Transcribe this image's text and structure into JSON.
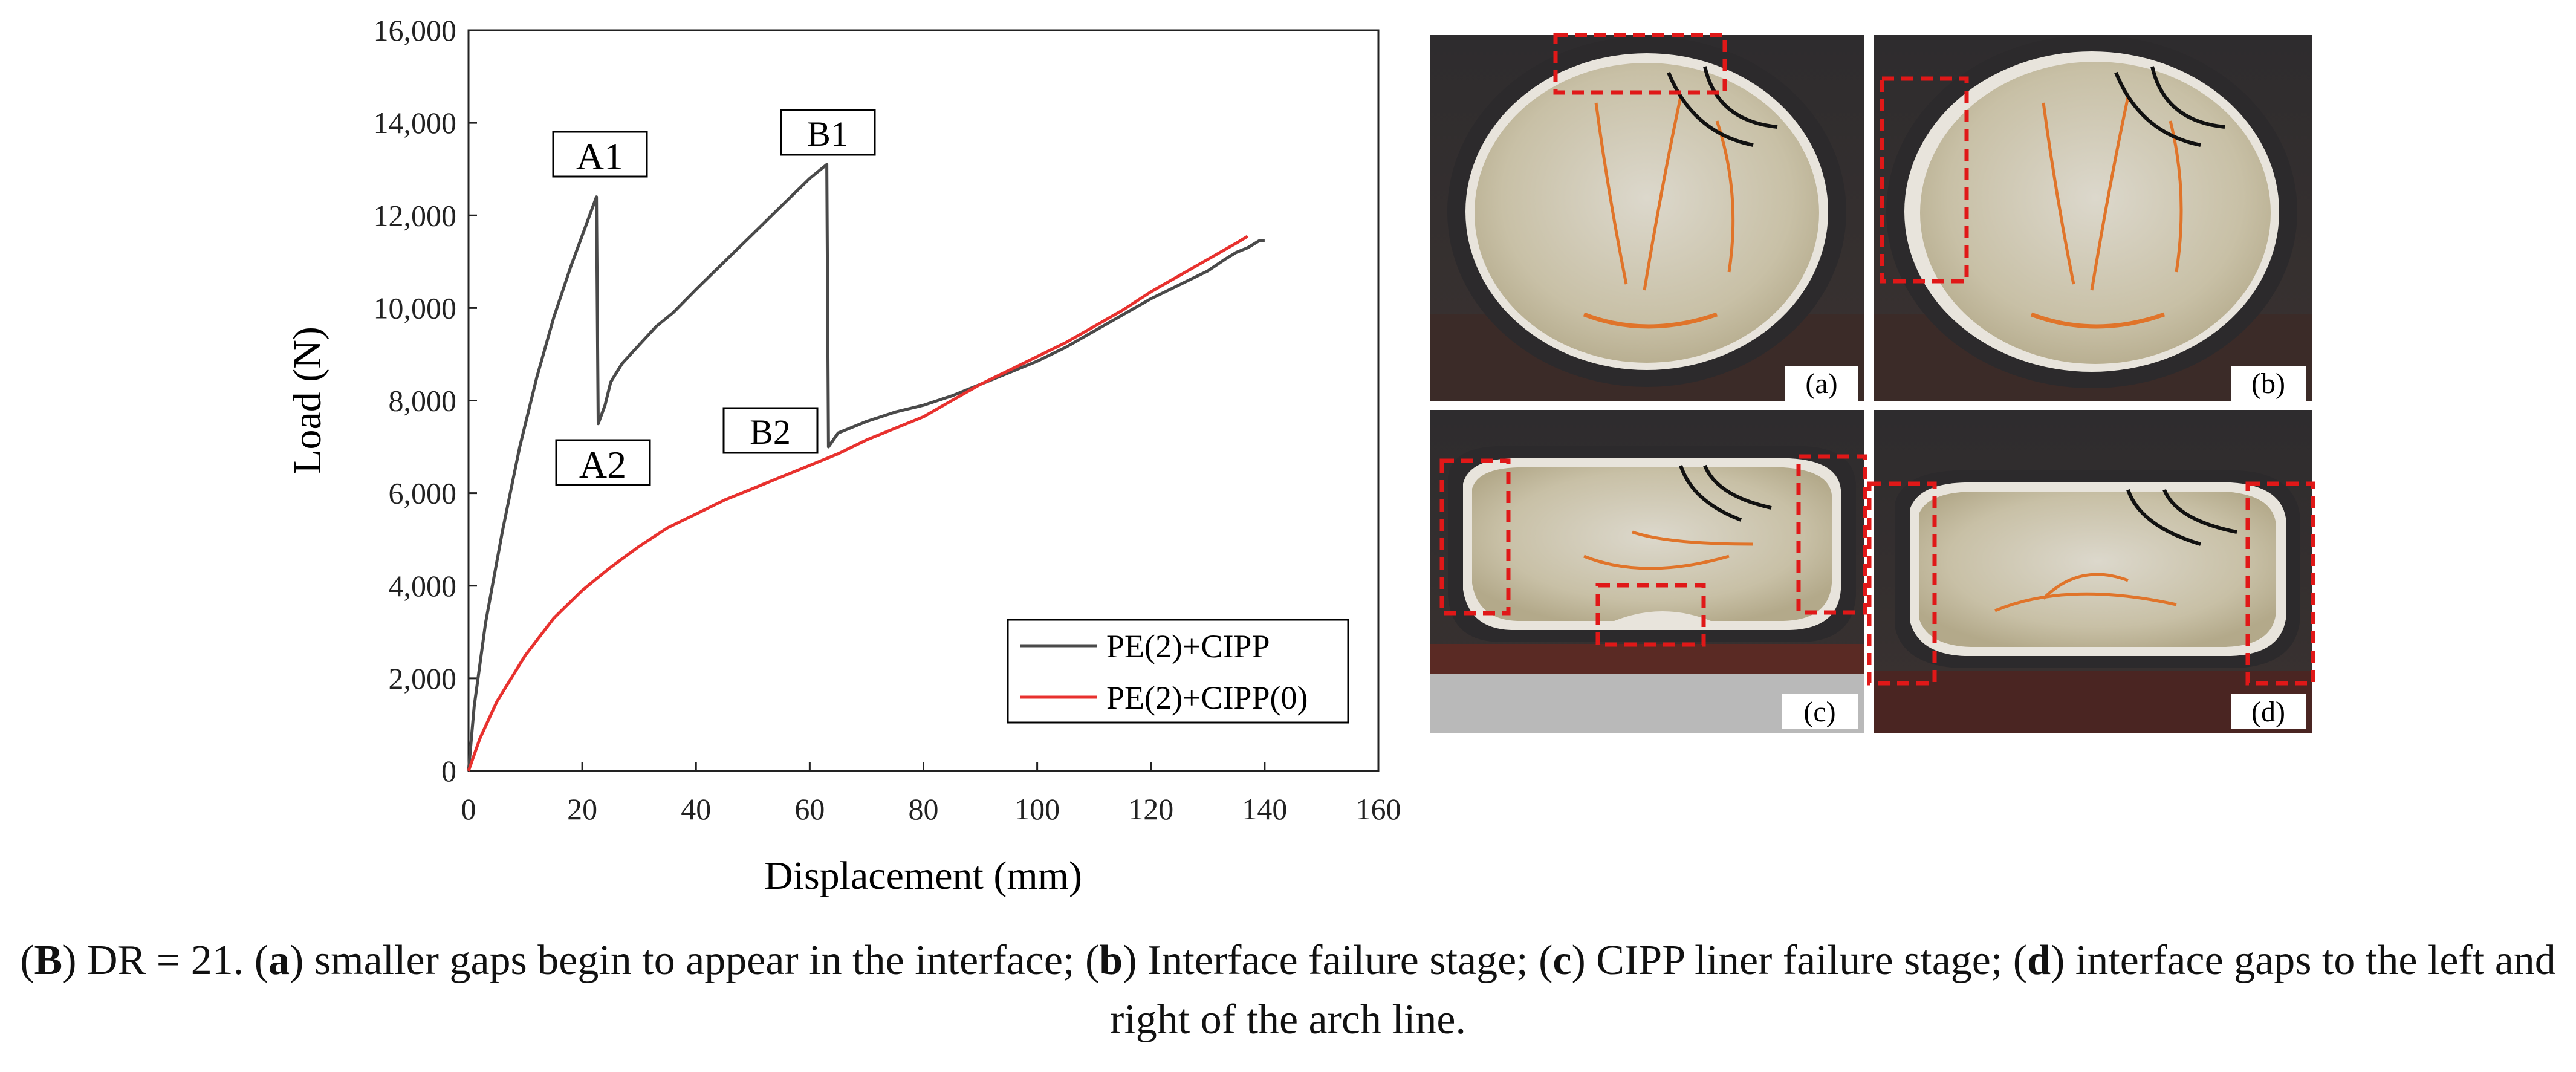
{
  "chart_data": {
    "type": "line",
    "xlabel": "Displacement (mm)",
    "ylabel": "Load (N)",
    "xlim": [
      0,
      160
    ],
    "ylim": [
      0,
      16000
    ],
    "x_ticks": [
      0,
      20,
      40,
      60,
      80,
      100,
      120,
      140,
      160
    ],
    "x_tick_labels": [
      "0",
      "20",
      "40",
      "60",
      "80",
      "100",
      "120",
      "140",
      "160"
    ],
    "y_ticks": [
      0,
      2000,
      4000,
      6000,
      8000,
      10000,
      12000,
      14000,
      16000
    ],
    "y_tick_labels": [
      "0",
      "2,000",
      "4,000",
      "6,000",
      "8,000",
      "10,000",
      "12,000",
      "14,000",
      "16,000"
    ],
    "grid": false,
    "legend_position": "bottom-right",
    "series": [
      {
        "name": "PE(2)+CIPP",
        "color": "#4a4a4a",
        "points": [
          [
            0,
            0
          ],
          [
            1,
            1400
          ],
          [
            3,
            3200
          ],
          [
            6,
            5200
          ],
          [
            9,
            7000
          ],
          [
            12,
            8500
          ],
          [
            15,
            9800
          ],
          [
            18,
            10900
          ],
          [
            21,
            11900
          ],
          [
            22.5,
            12400
          ],
          [
            22.8,
            7500
          ],
          [
            24,
            7900
          ],
          [
            25,
            8400
          ],
          [
            27,
            8800
          ],
          [
            30,
            9200
          ],
          [
            33,
            9600
          ],
          [
            36,
            9900
          ],
          [
            40,
            10400
          ],
          [
            45,
            11000
          ],
          [
            50,
            11600
          ],
          [
            55,
            12200
          ],
          [
            60,
            12800
          ],
          [
            63,
            13100
          ],
          [
            63.3,
            7000
          ],
          [
            65,
            7300
          ],
          [
            70,
            7550
          ],
          [
            75,
            7750
          ],
          [
            80,
            7900
          ],
          [
            85,
            8100
          ],
          [
            90,
            8350
          ],
          [
            95,
            8600
          ],
          [
            100,
            8850
          ],
          [
            105,
            9150
          ],
          [
            110,
            9500
          ],
          [
            115,
            9850
          ],
          [
            120,
            10200
          ],
          [
            125,
            10500
          ],
          [
            130,
            10800
          ],
          [
            133,
            11050
          ],
          [
            135,
            11200
          ],
          [
            137,
            11300
          ],
          [
            139,
            11450
          ],
          [
            140,
            11450
          ]
        ]
      },
      {
        "name": "PE(2)+CIPP(0)",
        "color": "#e8312e",
        "points": [
          [
            0,
            0
          ],
          [
            2,
            700
          ],
          [
            5,
            1500
          ],
          [
            10,
            2500
          ],
          [
            15,
            3300
          ],
          [
            20,
            3900
          ],
          [
            25,
            4400
          ],
          [
            30,
            4850
          ],
          [
            35,
            5250
          ],
          [
            40,
            5550
          ],
          [
            45,
            5850
          ],
          [
            50,
            6100
          ],
          [
            55,
            6350
          ],
          [
            60,
            6600
          ],
          [
            65,
            6850
          ],
          [
            70,
            7150
          ],
          [
            75,
            7400
          ],
          [
            80,
            7650
          ],
          [
            85,
            8000
          ],
          [
            90,
            8350
          ],
          [
            95,
            8650
          ],
          [
            100,
            8950
          ],
          [
            105,
            9250
          ],
          [
            110,
            9600
          ],
          [
            115,
            9950
          ],
          [
            120,
            10350
          ],
          [
            125,
            10700
          ],
          [
            130,
            11050
          ],
          [
            135,
            11400
          ],
          [
            137,
            11550
          ]
        ]
      }
    ],
    "annotations": [
      {
        "label": "A1",
        "x": 22.5,
        "y": 12400
      },
      {
        "label": "A2",
        "x": 22.8,
        "y": 7500
      },
      {
        "label": "B1",
        "x": 63,
        "y": 13100
      },
      {
        "label": "B2",
        "x": 63.3,
        "y": 7000
      }
    ]
  },
  "photos": [
    {
      "label": "(a)"
    },
    {
      "label": "(b)"
    },
    {
      "label": "(c)"
    },
    {
      "label": "(d)"
    }
  ],
  "caption": {
    "figure_label": "B",
    "lead": ") DR = 21. (",
    "a_label": "a",
    "a_text": ") smaller gaps begin to appear in the interface; (",
    "b_label": "b",
    "b_text": ") Interface failure stage; (",
    "c_label": "c",
    "c_text": ") CIPP liner failure stage; (",
    "d_label": "d",
    "d_text": ") interface gaps to the left and right of the arch line."
  }
}
